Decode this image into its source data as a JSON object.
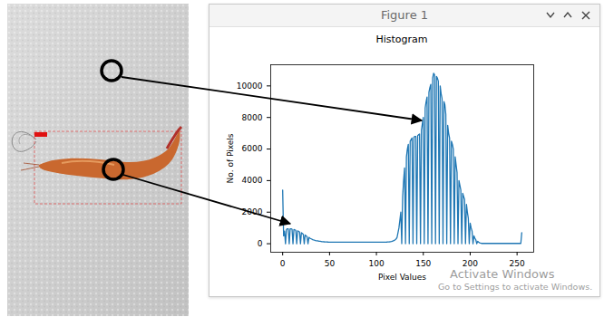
{
  "window": {
    "title": "Figure 1",
    "watermark": [
      "Activate Windows",
      "Go to Settings to activate Windows."
    ]
  },
  "chart_data": {
    "type": "line",
    "title": "Histogram",
    "x_label": "Pixel Values",
    "y_label": "No. of Pixels",
    "x": [
      0,
      1,
      2,
      3,
      4,
      5,
      6,
      7,
      8,
      9,
      10,
      11,
      12,
      13,
      14,
      15,
      16,
      17,
      18,
      19,
      20,
      21,
      22,
      23,
      24,
      25,
      26,
      27,
      28,
      29,
      30,
      31,
      32,
      33,
      34,
      35,
      36,
      37,
      38,
      39,
      40,
      41,
      42,
      43,
      44,
      45,
      46,
      47,
      48,
      49,
      50,
      51,
      52,
      53,
      54,
      55,
      56,
      57,
      58,
      59,
      60,
      61,
      62,
      63,
      64,
      65,
      66,
      67,
      68,
      69,
      70,
      71,
      72,
      73,
      74,
      75,
      76,
      77,
      78,
      79,
      80,
      81,
      82,
      83,
      84,
      85,
      86,
      87,
      88,
      89,
      90,
      91,
      92,
      93,
      94,
      95,
      96,
      97,
      98,
      99,
      100,
      101,
      102,
      103,
      104,
      105,
      106,
      107,
      108,
      109,
      110,
      111,
      112,
      113,
      114,
      115,
      116,
      117,
      118,
      119,
      120,
      121,
      122,
      123,
      124,
      125,
      126,
      127,
      128,
      129,
      130,
      131,
      132,
      133,
      134,
      135,
      136,
      137,
      138,
      139,
      140,
      141,
      142,
      143,
      144,
      145,
      146,
      147,
      148,
      149,
      150,
      151,
      152,
      153,
      154,
      155,
      156,
      157,
      158,
      159,
      160,
      161,
      162,
      163,
      164,
      165,
      166,
      167,
      168,
      169,
      170,
      171,
      172,
      173,
      174,
      175,
      176,
      177,
      178,
      179,
      180,
      181,
      182,
      183,
      184,
      185,
      186,
      187,
      188,
      189,
      190,
      191,
      192,
      193,
      194,
      195,
      196,
      197,
      198,
      199,
      200,
      201,
      202,
      203,
      204,
      205,
      206,
      207,
      208,
      209,
      210,
      211,
      212,
      213,
      214,
      215,
      216,
      217,
      218,
      219,
      220,
      221,
      222,
      223,
      224,
      225,
      226,
      227,
      228,
      229,
      230,
      231,
      232,
      233,
      234,
      235,
      236,
      237,
      238,
      239,
      240,
      241,
      242,
      243,
      244,
      245,
      246,
      247,
      248,
      249,
      250,
      251,
      252,
      253,
      254,
      255
    ],
    "values": [
      3400,
      500,
      800,
      0,
      900,
      950,
      950,
      0,
      950,
      950,
      920,
      0,
      900,
      880,
      850,
      0,
      820,
      780,
      750,
      0,
      700,
      650,
      600,
      0,
      550,
      500,
      450,
      0,
      400,
      350,
      320,
      290,
      260,
      240,
      220,
      200,
      190,
      180,
      170,
      160,
      150,
      140,
      130,
      125,
      120,
      115,
      110,
      108,
      105,
      103,
      100,
      100,
      98,
      100,
      102,
      100,
      98,
      97,
      100,
      101,
      100,
      99,
      98,
      100,
      100,
      100,
      101,
      99,
      98,
      100,
      100,
      102,
      100,
      99,
      98,
      100,
      101,
      100,
      99,
      100,
      100,
      98,
      97,
      100,
      100,
      101,
      100,
      99,
      100,
      100,
      98,
      100,
      102,
      100,
      100,
      99,
      100,
      100,
      98,
      100,
      101,
      100,
      100,
      99,
      100,
      100,
      100,
      101,
      100,
      100,
      102,
      105,
      110,
      115,
      120,
      130,
      140,
      160,
      180,
      210,
      250,
      300,
      400,
      700,
      1000,
      1500,
      2000,
      0,
      3000,
      4000,
      4800,
      0,
      5500,
      6000,
      6300,
      0,
      6500,
      6600,
      6700,
      0,
      6750,
      6800,
      6800,
      0,
      6850,
      6900,
      6950,
      0,
      7200,
      7600,
      8000,
      0,
      8600,
      9000,
      9300,
      0,
      9600,
      9900,
      10100,
      0,
      10500,
      10800,
      10700,
      0,
      10600,
      10500,
      10300,
      0,
      10000,
      9500,
      9200,
      0,
      9000,
      8800,
      8200,
      0,
      7500,
      7000,
      6700,
      0,
      6500,
      6300,
      6000,
      0,
      5500,
      5000,
      4500,
      0,
      4000,
      3700,
      3400,
      0,
      3200,
      3000,
      2800,
      0,
      2500,
      2000,
      1600,
      0,
      1300,
      1000,
      800,
      0,
      500,
      350,
      250,
      0,
      150,
      100,
      60,
      40,
      20,
      20,
      20,
      20,
      20,
      20,
      20,
      20,
      20,
      20,
      20,
      20,
      20,
      20,
      20,
      20,
      20,
      20,
      20,
      20,
      20,
      20,
      20,
      20,
      20,
      20,
      20,
      20,
      20,
      20,
      20,
      20,
      20,
      20,
      20,
      20,
      20,
      20,
      20,
      20,
      20,
      20,
      20,
      700
    ],
    "color": "#1f77b4",
    "xlim": [
      -12.75,
      267.75
    ],
    "ylim": [
      -540,
      11340
    ],
    "xticks": [
      0,
      50,
      100,
      150,
      200,
      250
    ],
    "yticks": [
      0,
      2000,
      4000,
      6000,
      8000,
      10000
    ],
    "grid": false
  }
}
